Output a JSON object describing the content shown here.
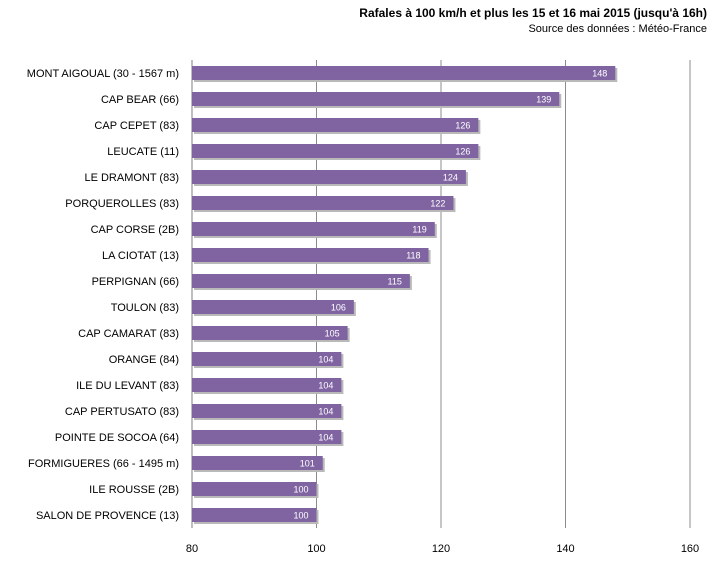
{
  "title": "Rafales à 100 km/h et plus les 15 et 16 mai 2015 (jusqu'à 16h)",
  "subtitle": "Source des données : Météo-France",
  "colors": {
    "bar": "#8064a2",
    "bar_shadow": "#b9b9b9",
    "grid": "#8c8c8c",
    "axis": "#7f7f7f"
  },
  "chart_data": {
    "type": "bar",
    "orientation": "horizontal",
    "categories": [
      "MONT AIGOUAL (30 - 1567 m)",
      "CAP BEAR (66)",
      "CAP CEPET (83)",
      "LEUCATE (11)",
      "LE DRAMONT (83)",
      "PORQUEROLLES (83)",
      "CAP CORSE (2B)",
      "LA CIOTAT (13)",
      "PERPIGNAN (66)",
      "TOULON (83)",
      "CAP CAMARAT (83)",
      "ORANGE (84)",
      "ILE DU LEVANT (83)",
      "CAP PERTUSATO (83)",
      "POINTE DE SOCOA (64)",
      "FORMIGUERES (66 - 1495 m)",
      "ILE ROUSSE (2B)",
      "SALON DE PROVENCE (13)"
    ],
    "values": [
      148,
      139,
      126,
      126,
      124,
      122,
      119,
      118,
      115,
      106,
      105,
      104,
      104,
      104,
      104,
      101,
      100,
      100
    ],
    "xlim": [
      80,
      160
    ],
    "xticks": [
      80,
      100,
      120,
      140,
      160
    ],
    "grid": "vertical",
    "data_labels": true
  }
}
